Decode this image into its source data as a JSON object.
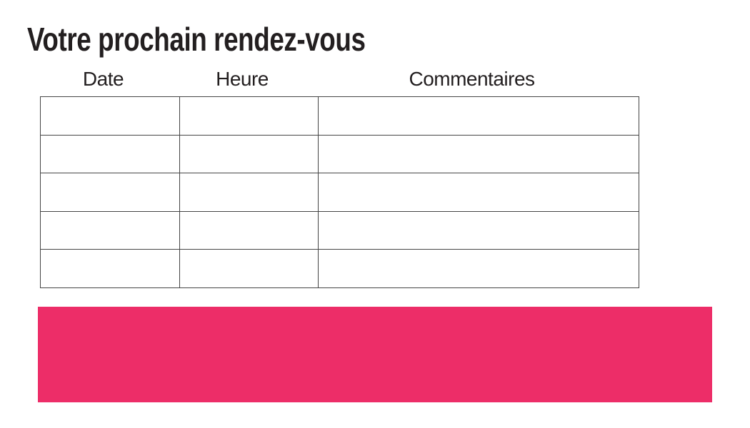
{
  "title": "Votre prochain rendez-vous",
  "table": {
    "headers": [
      "Date",
      "Heure",
      "Commentaires"
    ],
    "rows": [
      [
        "",
        "",
        ""
      ],
      [
        "",
        "",
        ""
      ],
      [
        "",
        "",
        ""
      ],
      [
        "",
        "",
        ""
      ],
      [
        "",
        "",
        ""
      ]
    ]
  },
  "banner": {
    "label": ""
  },
  "colors": {
    "accent_pink": "#ED2D68",
    "title_text": "#231F20",
    "header_text": "#231F20",
    "table_border": "#454545",
    "page_background": "#FFFFFF"
  }
}
